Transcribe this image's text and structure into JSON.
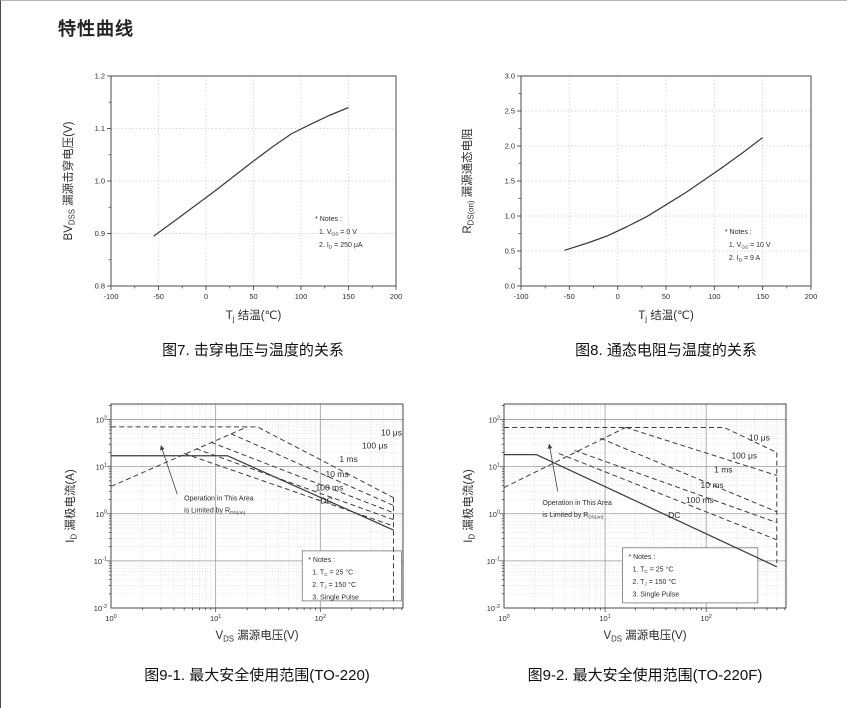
{
  "page": {
    "title": "特性曲线"
  },
  "colors": {
    "curve": "#3d3d3d",
    "axis": "#4a4a4a",
    "grid_dotted": "#bfbfbf",
    "grid_log_minor": "#cccccc",
    "grid_log_major": "#9a9a9a",
    "text": "#2e2e2e",
    "notes_border": "#777777",
    "background": "#ffffff"
  },
  "figures": [
    {
      "id": "fig7",
      "caption": "图7. 击穿电压与温度的关系"
    },
    {
      "id": "fig8",
      "caption": "图8. 通态电阻与温度的关系"
    },
    {
      "id": "fig9_1",
      "caption": "图9-1. 最大安全使用范围(TO-220)"
    },
    {
      "id": "fig9_2",
      "caption": "图9-2. 最大安全使用范围(TO-220F)"
    }
  ],
  "chart_data": [
    {
      "id": "fig7",
      "type": "line",
      "scale": "linear",
      "xlabel": [
        "T",
        {
          "s": "j"
        },
        " 结温(℃)"
      ],
      "ylabel": [
        "BV",
        {
          "s": "DSS"
        },
        " 漏源击穿电压(V)"
      ],
      "x": {
        "min": -100,
        "max": 200,
        "ticks": [
          -100,
          -50,
          0,
          50,
          100,
          150,
          200
        ],
        "tick_labels": [
          "-100",
          "-50",
          "0",
          "50",
          "100",
          "150",
          "200"
        ],
        "minor": 25
      },
      "y": {
        "min": 0.8,
        "max": 1.2,
        "ticks": [
          0.8,
          0.9,
          1.0,
          1.1,
          1.2
        ],
        "tick_labels": [
          "0.8",
          "0.9",
          "1.0",
          "1.1",
          "1.2"
        ],
        "minor": 0.05
      },
      "series": [
        {
          "name": "BVdss_vs_Tj",
          "style": "solid",
          "points": [
            [
              -55,
              0.895
            ],
            [
              -30,
              0.928
            ],
            [
              -10,
              0.955
            ],
            [
              10,
              0.982
            ],
            [
              30,
              1.01
            ],
            [
              50,
              1.038
            ],
            [
              70,
              1.065
            ],
            [
              90,
              1.09
            ],
            [
              110,
              1.108
            ],
            [
              130,
              1.125
            ],
            [
              150,
              1.14
            ]
          ]
        }
      ],
      "notes": {
        "fx": 0.716,
        "fy": 0.69,
        "lines": [
          [
            "* Notes :"
          ],
          [
            "1. V",
            {
              "s": "GS"
            },
            " = 0 V"
          ],
          [
            "2. I",
            {
              "s": "D"
            },
            " = 250 μA"
          ]
        ]
      }
    },
    {
      "id": "fig8",
      "type": "line",
      "scale": "linear",
      "xlabel": [
        "T",
        {
          "s": "j"
        },
        " 结温(℃)"
      ],
      "ylabel": [
        "R",
        {
          "s": "DS(on)"
        },
        " 漏源通态电阻"
      ],
      "x": {
        "min": -100,
        "max": 200,
        "ticks": [
          -100,
          -50,
          0,
          50,
          100,
          150,
          200
        ],
        "tick_labels": [
          "-100",
          "-50",
          "0",
          "50",
          "100",
          "150",
          "200"
        ],
        "minor": 25
      },
      "y": {
        "min": 0.0,
        "max": 3.0,
        "ticks": [
          0.0,
          0.5,
          1.0,
          1.5,
          2.0,
          2.5,
          3.0
        ],
        "tick_labels": [
          "0.0",
          "0.5",
          "1.0",
          "1.5",
          "2.0",
          "2.5",
          "3.0"
        ],
        "minor": 0.25
      },
      "series": [
        {
          "name": "Rdson_vs_Tj",
          "style": "solid",
          "points": [
            [
              -55,
              0.51
            ],
            [
              -30,
              0.62
            ],
            [
              -10,
              0.72
            ],
            [
              10,
              0.85
            ],
            [
              30,
              0.99
            ],
            [
              50,
              1.16
            ],
            [
              70,
              1.33
            ],
            [
              90,
              1.52
            ],
            [
              110,
              1.71
            ],
            [
              130,
              1.91
            ],
            [
              150,
              2.12
            ]
          ]
        }
      ],
      "notes": {
        "fx": 0.703,
        "fy": 0.752,
        "lines": [
          [
            "* Notes :"
          ],
          [
            "1. V",
            {
              "s": "GS"
            },
            " = 10 V"
          ],
          [
            "2. I",
            {
              "s": "D"
            },
            " = 9 A"
          ]
        ]
      }
    },
    {
      "id": "fig9_1",
      "type": "line",
      "scale": "log-log",
      "xlabel": [
        "V",
        {
          "s": "DS"
        },
        " 漏源电压(V)"
      ],
      "ylabel": [
        "I",
        {
          "s": "D"
        },
        " 漏极电流(A)"
      ],
      "x": {
        "log_min": 0,
        "log_max": 2.79,
        "ticks_exp": [
          0,
          1,
          2
        ]
      },
      "y": {
        "log_min": -2,
        "log_max": 2.33,
        "ticks_exp": [
          2,
          1,
          0,
          -1,
          -2
        ]
      },
      "series": [
        {
          "name": "limit_10us",
          "style": "dashed",
          "points": [
            [
              1,
              70
            ],
            [
              25,
              70
            ],
            [
              500,
              2.2
            ]
          ],
          "label": "10 μs",
          "label_at": [
            380,
            46
          ]
        },
        {
          "name": "limit_100us",
          "style": "dashed",
          "points": [
            [
              14,
              50
            ],
            [
              500,
              1.5
            ]
          ],
          "label": "100 μs",
          "label_at": [
            250,
            24
          ]
        },
        {
          "name": "limit_1ms",
          "style": "dashed",
          "points": [
            [
              9,
              33
            ],
            [
              500,
              1.05
            ]
          ],
          "label": "1 ms",
          "label_at": [
            152,
            12.5
          ]
        },
        {
          "name": "limit_10ms",
          "style": "dashed",
          "points": [
            [
              6.5,
              24
            ],
            [
              500,
              0.75
            ]
          ],
          "label": "10 ms",
          "label_at": [
            112,
            6.0
          ]
        },
        {
          "name": "limit_100ms",
          "style": "dashed",
          "points": [
            [
              5,
              19
            ],
            [
              500,
              0.55
            ]
          ],
          "label": "100 ms",
          "label_at": [
            90,
            3.1
          ]
        },
        {
          "name": "limit_dc",
          "style": "solid",
          "points": [
            [
              1,
              17
            ],
            [
              13,
              17
            ],
            [
              500,
              0.45
            ]
          ],
          "label": "DC",
          "label_at": [
            100,
            1.65
          ]
        },
        {
          "name": "rdson_limit",
          "style": "dashed",
          "points": [
            [
              1,
              3.8
            ],
            [
              20,
              70
            ]
          ]
        },
        {
          "name": "bvdss_limit",
          "style": "dashed",
          "points": [
            [
              500,
              2.2
            ],
            [
              500,
              0.012
            ]
          ]
        }
      ],
      "annotation": {
        "lines": [
          [
            "Operation in This Area"
          ],
          [
            "is Limited by R",
            {
              "s": "DS(on)"
            }
          ]
        ],
        "at": [
          5.0,
          1.9
        ],
        "arrow": {
          "from": [
            4.3,
            2.6
          ],
          "to": [
            3.0,
            28
          ]
        }
      },
      "notes": {
        "box": [
          0.655,
          0.72,
          0.34,
          0.245
        ],
        "lines": [
          [
            "* Notes :"
          ],
          [
            "1. T",
            {
              "s": "C"
            },
            " = 25 °C"
          ],
          [
            "2. T",
            {
              "s": "J"
            },
            " = 150 °C"
          ],
          [
            "3. Single Pulse"
          ]
        ]
      }
    },
    {
      "id": "fig9_2",
      "type": "line",
      "scale": "log-log",
      "xlabel": [
        "V",
        {
          "s": "DS"
        },
        " 漏源电压(V)"
      ],
      "ylabel": [
        "I",
        {
          "s": "D"
        },
        " 漏极电流(A)"
      ],
      "x": {
        "log_min": 0,
        "log_max": 2.79,
        "ticks_exp": [
          0,
          1,
          2
        ]
      },
      "y": {
        "log_min": -2,
        "log_max": 2.33,
        "ticks_exp": [
          2,
          1,
          0,
          -1,
          -2
        ]
      },
      "series": [
        {
          "name": "limit_10us",
          "style": "dashed",
          "points": [
            [
              1,
              68
            ],
            [
              150,
              68
            ],
            [
              500,
              20
            ]
          ],
          "label": "10 μs",
          "label_at": [
            265,
            36
          ]
        },
        {
          "name": "limit_100us",
          "style": "dashed",
          "points": [
            [
              16,
              68
            ],
            [
              500,
              6.5
            ]
          ],
          "label": "100 μs",
          "label_at": [
            178,
            15
          ]
        },
        {
          "name": "limit_1ms",
          "style": "dashed",
          "points": [
            [
              9,
              40
            ],
            [
              500,
              1.1
            ]
          ],
          "label": "1 ms",
          "label_at": [
            120,
            7.5
          ]
        },
        {
          "name": "limit_10ms",
          "style": "dashed",
          "points": [
            [
              5,
              22
            ],
            [
              500,
              0.65
            ]
          ],
          "label": "10 ms",
          "label_at": [
            88,
            3.5
          ]
        },
        {
          "name": "limit_100ms",
          "style": "dashed",
          "points": [
            [
              3.5,
              19
            ],
            [
              500,
              0.28
            ]
          ],
          "label": "100 ms",
          "label_at": [
            63,
            1.7
          ]
        },
        {
          "name": "limit_dc",
          "style": "solid",
          "points": [
            [
              1,
              18
            ],
            [
              2.1,
              18
            ],
            [
              500,
              0.075
            ]
          ],
          "label": "DC",
          "label_at": [
            42,
            0.82
          ]
        },
        {
          "name": "rdson_limit",
          "style": "dashed",
          "points": [
            [
              1,
              3.6
            ],
            [
              16,
              68
            ]
          ]
        },
        {
          "name": "bvdss_limit",
          "style": "dashed",
          "points": [
            [
              500,
              20
            ],
            [
              500,
              0.09
            ]
          ]
        }
      ],
      "annotation": {
        "lines": [
          [
            "Operation in This Area"
          ],
          [
            "is Limited by R",
            {
              "s": "DS(on)"
            }
          ]
        ],
        "at": [
          2.4,
          1.55
        ],
        "arrow": {
          "from": [
            3.4,
            3.0
          ],
          "to": [
            2.8,
            30
          ]
        }
      },
      "notes": {
        "box": [
          0.42,
          0.705,
          0.48,
          0.27
        ],
        "lines": [
          [
            "* Notes :"
          ],
          [
            "1. T",
            {
              "s": "C"
            },
            " = 25 °C"
          ],
          [
            "2. T",
            {
              "s": "J"
            },
            " = 150 °C"
          ],
          [
            "3. Single Pulse"
          ]
        ]
      }
    }
  ]
}
